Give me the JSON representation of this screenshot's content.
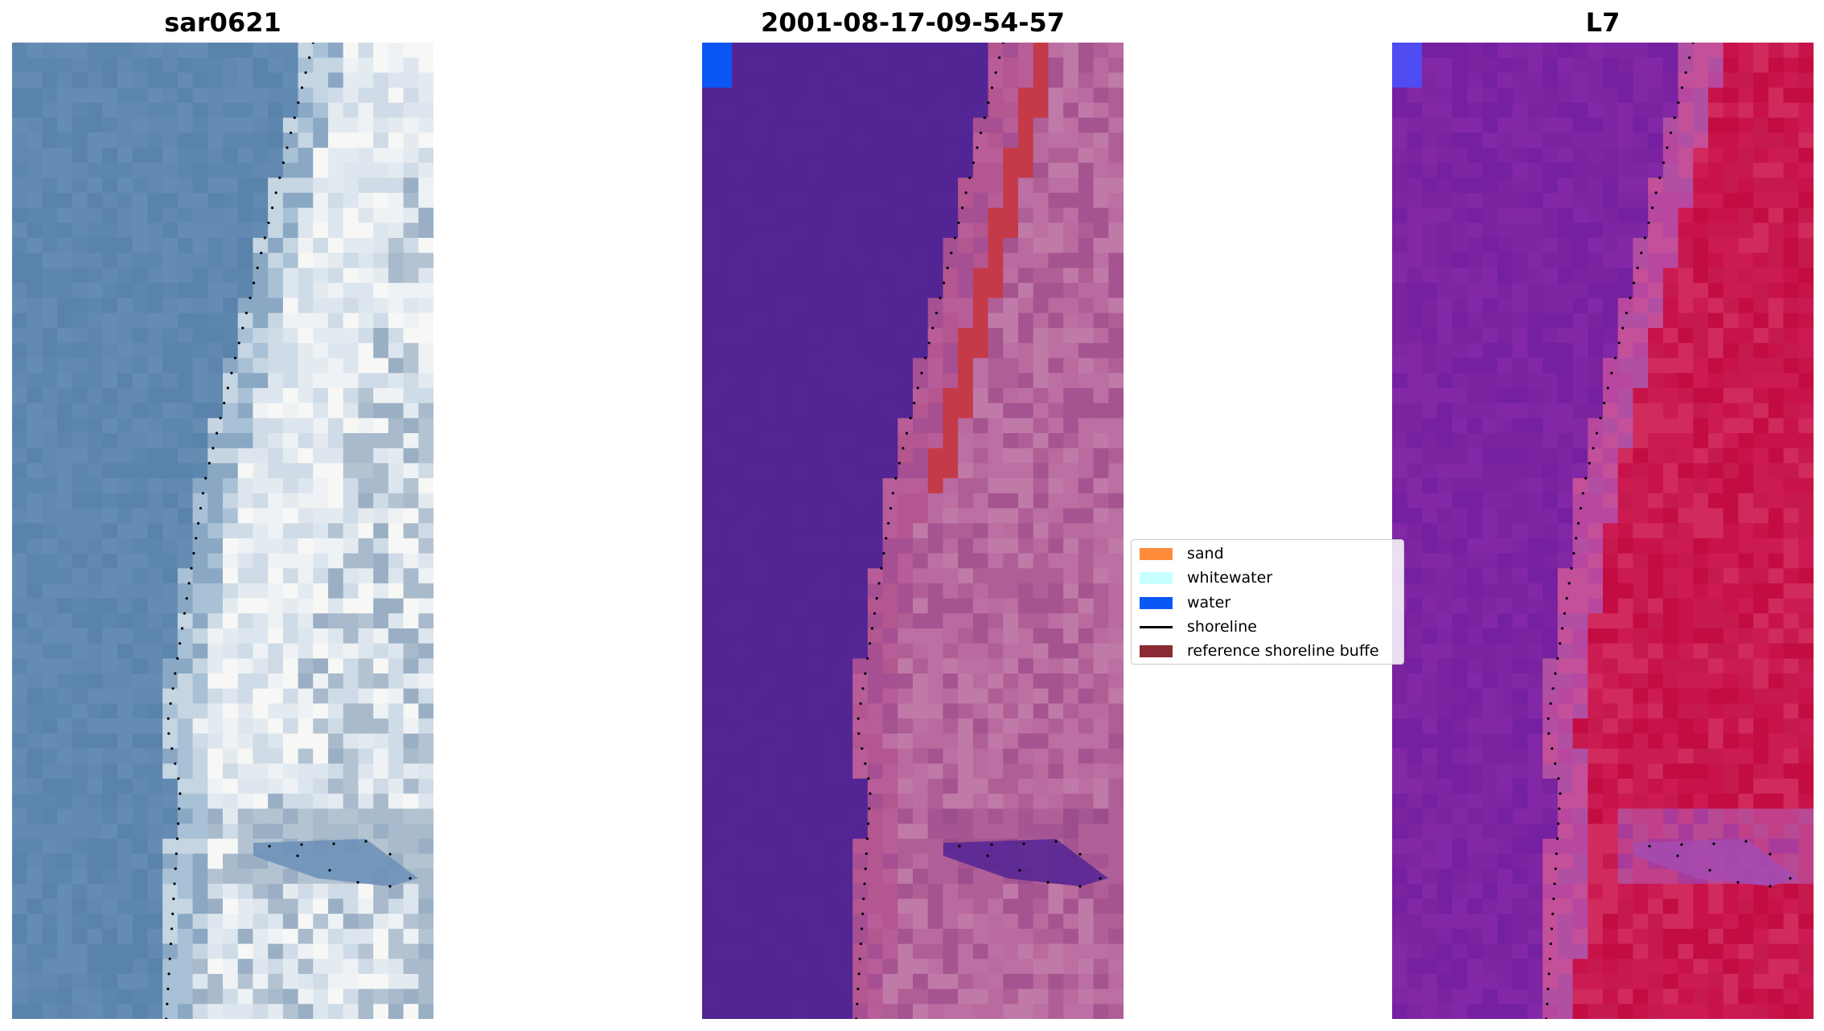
{
  "panels": [
    {
      "title": "sar0621",
      "palette": {
        "water": [
          "#5d86ae",
          "#6189b1",
          "#5a83ab",
          "#658db3"
        ],
        "transition": [
          "#8aa8c4",
          "#a9c1d6",
          "#c6d5e2"
        ],
        "land": [
          "#dde6ee",
          "#eef2f5",
          "#f7f8f6",
          "#e4ebf0",
          "#cfdbe6"
        ],
        "gray": [
          "#9aafc4",
          "#a8bacb",
          "#b4c3d1"
        ],
        "accent": "#5d86ae"
      }
    },
    {
      "title": "2001-08-17-09-54-57",
      "palette": {
        "water": [
          "#532494",
          "#532494",
          "#532494",
          "#542595"
        ],
        "transition": [
          "#a64f93",
          "#b85d98",
          "#b4568f"
        ],
        "land": [
          "#b96a9f",
          "#bb6fa3",
          "#b05f96",
          "#a65490",
          "#c07aa8"
        ],
        "gray": [
          "#9c4d8c",
          "#a55592",
          "#b15f98"
        ],
        "accent": "#c43a48",
        "corner": "#0a57f5"
      }
    },
    {
      "title": "L7",
      "palette": {
        "water": [
          "#7a22a0",
          "#7d25a3",
          "#7520a0",
          "#8228a6"
        ],
        "transition": [
          "#b14fa3",
          "#c4509a",
          "#b8479f"
        ],
        "land": [
          "#c8134a",
          "#cc1b52",
          "#c20c42",
          "#d12a5d",
          "#c61a4f"
        ],
        "gray": [
          "#b84a94",
          "#c0408a",
          "#a93c9a"
        ],
        "accent": "#6b1aa4",
        "corner": "#4f4cf2"
      }
    }
  ],
  "legend": {
    "items": [
      {
        "label": "sand",
        "color": "#ff8c3b",
        "kind": "patch"
      },
      {
        "label": "whitewater",
        "color": "#c8ffff",
        "kind": "patch"
      },
      {
        "label": "water",
        "color": "#0a57f5",
        "kind": "patch"
      },
      {
        "label": "shoreline",
        "color": "#000000",
        "kind": "line"
      },
      {
        "label": "reference shoreline buffe",
        "color": "#8b2a32",
        "kind": "patch"
      }
    ]
  }
}
